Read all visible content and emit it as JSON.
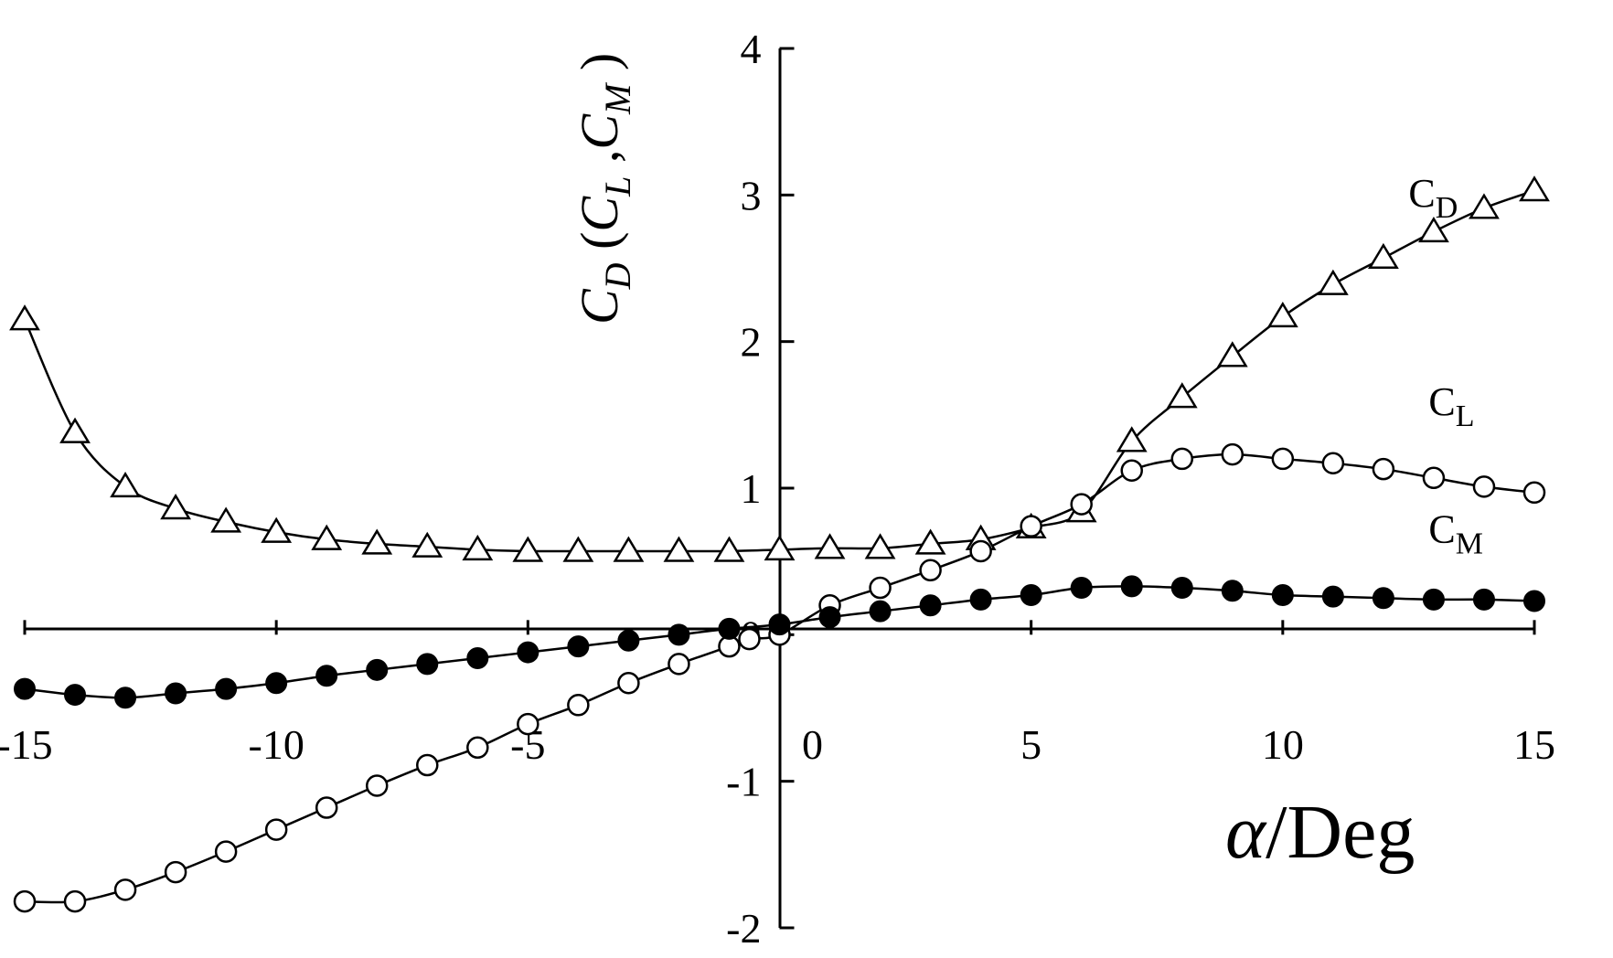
{
  "chart_data": {
    "type": "line",
    "xlabel": "α/Deg",
    "ylabel": "C_D (C_L , C_M )",
    "ylabel_parts": {
      "main": "C",
      "main_sub": "D",
      "open": " (",
      "c1": "C",
      "c1_sub": "L",
      "sep": " ,",
      "c2": "C",
      "c2_sub": "M",
      "close": " )"
    },
    "xlabel_parts": {
      "symbol": "α",
      "unit": "/Deg"
    },
    "xlim": [
      -15,
      15
    ],
    "ylim": [
      -2,
      4
    ],
    "x_ticks": [
      -15,
      -10,
      -5,
      0,
      5,
      10,
      15
    ],
    "x_tick_labels": [
      "-15",
      "-10",
      "-5",
      "0",
      "5",
      "10",
      "15"
    ],
    "y_ticks": [
      -2,
      -1,
      0,
      1,
      2,
      3,
      4
    ],
    "y_tick_labels": [
      "-2",
      "-1",
      "0",
      "1",
      "2",
      "3",
      "4"
    ],
    "grid": false,
    "series": [
      {
        "name": "C_D",
        "label_main": "C",
        "label_sub": "D",
        "marker": "triangle-open",
        "points": [
          [
            -15,
            2.15
          ],
          [
            -14,
            1.38
          ],
          [
            -13,
            1.01
          ],
          [
            -12,
            0.86
          ],
          [
            -11,
            0.77
          ],
          [
            -10,
            0.7
          ],
          [
            -9,
            0.65
          ],
          [
            -8,
            0.62
          ],
          [
            -7,
            0.6
          ],
          [
            -6,
            0.58
          ],
          [
            -5,
            0.57
          ],
          [
            -4,
            0.57
          ],
          [
            -3,
            0.57
          ],
          [
            -2,
            0.57
          ],
          [
            -1,
            0.57
          ],
          [
            0,
            0.58
          ],
          [
            1,
            0.59
          ],
          [
            2,
            0.59
          ],
          [
            3,
            0.62
          ],
          [
            4,
            0.65
          ],
          [
            5,
            0.73
          ],
          [
            6,
            0.84
          ],
          [
            7,
            1.32
          ],
          [
            8,
            1.62
          ],
          [
            9,
            1.9
          ],
          [
            10,
            2.17
          ],
          [
            11,
            2.39
          ],
          [
            12,
            2.57
          ],
          [
            13,
            2.75
          ],
          [
            14,
            2.91
          ],
          [
            15,
            3.03
          ]
        ]
      },
      {
        "name": "C_L",
        "label_main": "C",
        "label_sub": "L",
        "marker": "circle-open",
        "points": [
          [
            -15,
            -1.82
          ],
          [
            -14,
            -1.82
          ],
          [
            -13,
            -1.74
          ],
          [
            -12,
            -1.62
          ],
          [
            -11,
            -1.48
          ],
          [
            -10,
            -1.33
          ],
          [
            -9,
            -1.18
          ],
          [
            -8,
            -1.03
          ],
          [
            -7,
            -0.89
          ],
          [
            -6,
            -0.77
          ],
          [
            -5,
            -0.61
          ],
          [
            -4,
            -0.48
          ],
          [
            -3,
            -0.33
          ],
          [
            -2,
            -0.2
          ],
          [
            -1,
            -0.08
          ],
          [
            -0.6,
            -0.03
          ],
          [
            0,
            0.0
          ],
          [
            1,
            0.2
          ],
          [
            2,
            0.32
          ],
          [
            3,
            0.44
          ],
          [
            4,
            0.57
          ],
          [
            5,
            0.74
          ],
          [
            6,
            0.89
          ],
          [
            7,
            1.12
          ],
          [
            8,
            1.2
          ],
          [
            9,
            1.23
          ],
          [
            10,
            1.2
          ],
          [
            11,
            1.17
          ],
          [
            12,
            1.13
          ],
          [
            13,
            1.07
          ],
          [
            14,
            1.01
          ],
          [
            15,
            0.97
          ]
        ]
      },
      {
        "name": "C_M",
        "label_main": "C",
        "label_sub": "M",
        "marker": "circle-filled",
        "points": [
          [
            -15,
            -0.37
          ],
          [
            -14,
            -0.41
          ],
          [
            -13,
            -0.43
          ],
          [
            -12,
            -0.4
          ],
          [
            -11,
            -0.37
          ],
          [
            -10,
            -0.33
          ],
          [
            -9,
            -0.28
          ],
          [
            -8,
            -0.24
          ],
          [
            -7,
            -0.2
          ],
          [
            -6,
            -0.16
          ],
          [
            -5,
            -0.12
          ],
          [
            -4,
            -0.08
          ],
          [
            -3,
            -0.04
          ],
          [
            -2,
            0.0
          ],
          [
            -1,
            0.04
          ],
          [
            0,
            0.07
          ],
          [
            1,
            0.12
          ],
          [
            2,
            0.16
          ],
          [
            3,
            0.2
          ],
          [
            4,
            0.24
          ],
          [
            5,
            0.27
          ],
          [
            6,
            0.32
          ],
          [
            7,
            0.33
          ],
          [
            8,
            0.32
          ],
          [
            9,
            0.3
          ],
          [
            10,
            0.27
          ],
          [
            11,
            0.26
          ],
          [
            12,
            0.25
          ],
          [
            13,
            0.24
          ],
          [
            14,
            0.24
          ],
          [
            15,
            0.23
          ]
        ]
      }
    ],
    "series_label_anchor": {
      "C_D": [
        12.5,
        2.92
      ],
      "C_L": [
        12.9,
        1.5
      ],
      "C_M": [
        12.9,
        0.63
      ]
    }
  }
}
